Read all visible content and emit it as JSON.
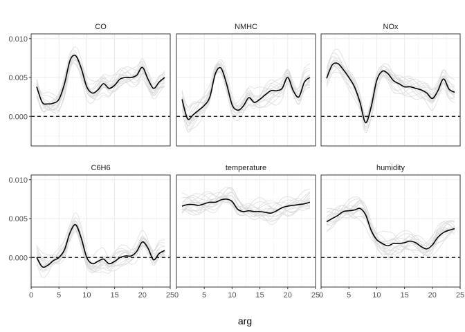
{
  "chart_data": {
    "type": "line",
    "layout": "facet-grid 2x3",
    "xlabel": "arg",
    "ylabel": "",
    "xlim": [
      0,
      25
    ],
    "ylim": [
      -0.0038,
      0.0106
    ],
    "x_ticks": [
      0,
      5,
      10,
      15,
      20,
      25
    ],
    "x_tick_labels": [
      "0",
      "5",
      "10",
      "15",
      "20",
      "25"
    ],
    "y_ticks": [
      0.0,
      0.005,
      0.01
    ],
    "y_tick_labels": [
      "0.000",
      "0.005",
      "0.010"
    ],
    "reference_line": {
      "y": 0,
      "style": "dashed",
      "color": "#000000"
    },
    "grid": true,
    "legend": "none",
    "colors": {
      "mean_line": "#000000",
      "sample_lines": "#d9d9d9",
      "panel_border": "#333333",
      "grid": "#ebebeb"
    },
    "x": [
      1,
      2,
      3,
      4,
      5,
      6,
      7,
      8,
      9,
      10,
      11,
      12,
      13,
      14,
      15,
      16,
      17,
      18,
      19,
      20,
      21,
      22,
      23,
      24
    ],
    "panels": [
      {
        "name": "CO",
        "values": [
          0.0038,
          0.0018,
          0.0016,
          0.0017,
          0.0022,
          0.0042,
          0.0072,
          0.0078,
          0.0062,
          0.0038,
          0.003,
          0.0034,
          0.0042,
          0.0036,
          0.004,
          0.0048,
          0.005,
          0.005,
          0.0053,
          0.0063,
          0.0048,
          0.0036,
          0.0044,
          0.005
        ]
      },
      {
        "name": "NMHC",
        "values": [
          0.0022,
          -0.0003,
          0.0002,
          0.0008,
          0.0014,
          0.0025,
          0.0055,
          0.0062,
          0.0042,
          0.0015,
          0.0008,
          0.0013,
          0.0024,
          0.0018,
          0.0022,
          0.0028,
          0.0033,
          0.0033,
          0.0036,
          0.005,
          0.0033,
          0.0025,
          0.0044,
          0.005
        ]
      },
      {
        "name": "NOx",
        "values": [
          0.0049,
          0.0066,
          0.0068,
          0.006,
          0.005,
          0.0038,
          0.0018,
          -0.0008,
          0.0012,
          0.0046,
          0.0058,
          0.0055,
          0.0046,
          0.0042,
          0.0038,
          0.0038,
          0.0036,
          0.0034,
          0.003,
          0.0023,
          0.0033,
          0.0048,
          0.0035,
          0.0031
        ]
      },
      {
        "name": "C6H6",
        "values": [
          0.0,
          -0.0012,
          -0.001,
          -0.0004,
          0.0,
          0.001,
          0.0032,
          0.0042,
          0.0025,
          0.0,
          -0.0008,
          -0.0005,
          -0.0002,
          -0.0008,
          -0.0005,
          0.0,
          0.0002,
          0.0002,
          0.0008,
          0.002,
          0.0012,
          -0.0003,
          0.0005,
          0.0009
        ]
      },
      {
        "name": "temperature",
        "values": [
          0.0066,
          0.0068,
          0.0068,
          0.0067,
          0.0069,
          0.0071,
          0.0071,
          0.0074,
          0.0075,
          0.0072,
          0.0062,
          0.0059,
          0.006,
          0.0059,
          0.0059,
          0.0058,
          0.0057,
          0.006,
          0.0064,
          0.0066,
          0.0067,
          0.0068,
          0.0069,
          0.0071
        ]
      },
      {
        "name": "humidity",
        "values": [
          0.0046,
          0.005,
          0.0054,
          0.0059,
          0.006,
          0.0061,
          0.0063,
          0.0055,
          0.0035,
          0.0023,
          0.0018,
          0.0015,
          0.0018,
          0.0018,
          0.0019,
          0.0021,
          0.0019,
          0.0014,
          0.0011,
          0.0016,
          0.0026,
          0.0032,
          0.0035,
          0.0037
        ]
      }
    ]
  }
}
